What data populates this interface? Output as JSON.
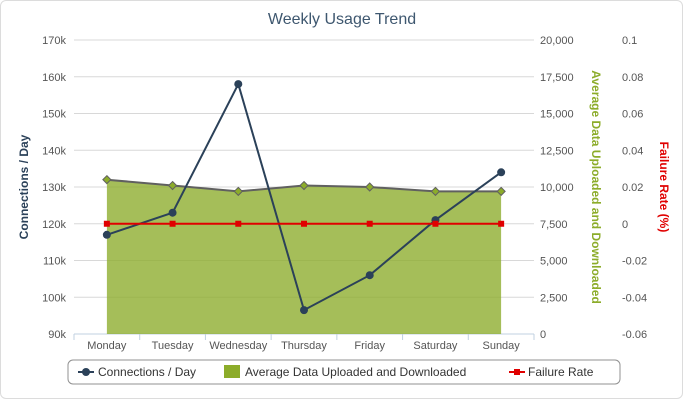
{
  "chart_data": {
    "type": "line",
    "title": "Weekly Usage Trend",
    "categories": [
      "Monday",
      "Tuesday",
      "Wednesday",
      "Thursday",
      "Friday",
      "Saturday",
      "Sunday"
    ],
    "axes": {
      "y_left": {
        "label": "Connections / Day",
        "range": [
          90000,
          170000
        ],
        "ticks": [
          "90k",
          "100k",
          "110k",
          "120k",
          "130k",
          "140k",
          "150k",
          "160k",
          "170k"
        ],
        "color": "#2b4159"
      },
      "y_right1": {
        "label": "Average Data Uploaded and Downloaded",
        "range": [
          0,
          20000
        ],
        "ticks": [
          "0",
          "2,500",
          "5,000",
          "7,500",
          "10,000",
          "12,500",
          "15,000",
          "17,500",
          "20,000"
        ],
        "color": "#8cac2a"
      },
      "y_right2": {
        "label": "Failure Rate (%)",
        "range": [
          -0.06,
          0.1
        ],
        "ticks": [
          "-0.06",
          "-0.04",
          "-0.02",
          "0",
          "0.02",
          "0.04",
          "0.06",
          "0.08",
          "0.1"
        ],
        "color": "#e00000"
      }
    },
    "series": [
      {
        "name": "Connections / Day",
        "type": "line",
        "axis": "y_left",
        "color": "#2b4159",
        "values": [
          117000,
          123000,
          158000,
          96500,
          106000,
          121000,
          134000
        ]
      },
      {
        "name": "Average Data Uploaded and Downloaded",
        "type": "area",
        "axis": "y_right1",
        "color": "#8cac2a",
        "values": [
          10500,
          10100,
          9700,
          10100,
          10000,
          9700,
          9700
        ]
      },
      {
        "name": "Failure Rate",
        "type": "line",
        "axis": "y_right2",
        "color": "#e00000",
        "values": [
          0,
          0,
          0,
          0,
          0,
          0,
          0
        ]
      }
    ],
    "grid": true,
    "legend": "bottom"
  }
}
